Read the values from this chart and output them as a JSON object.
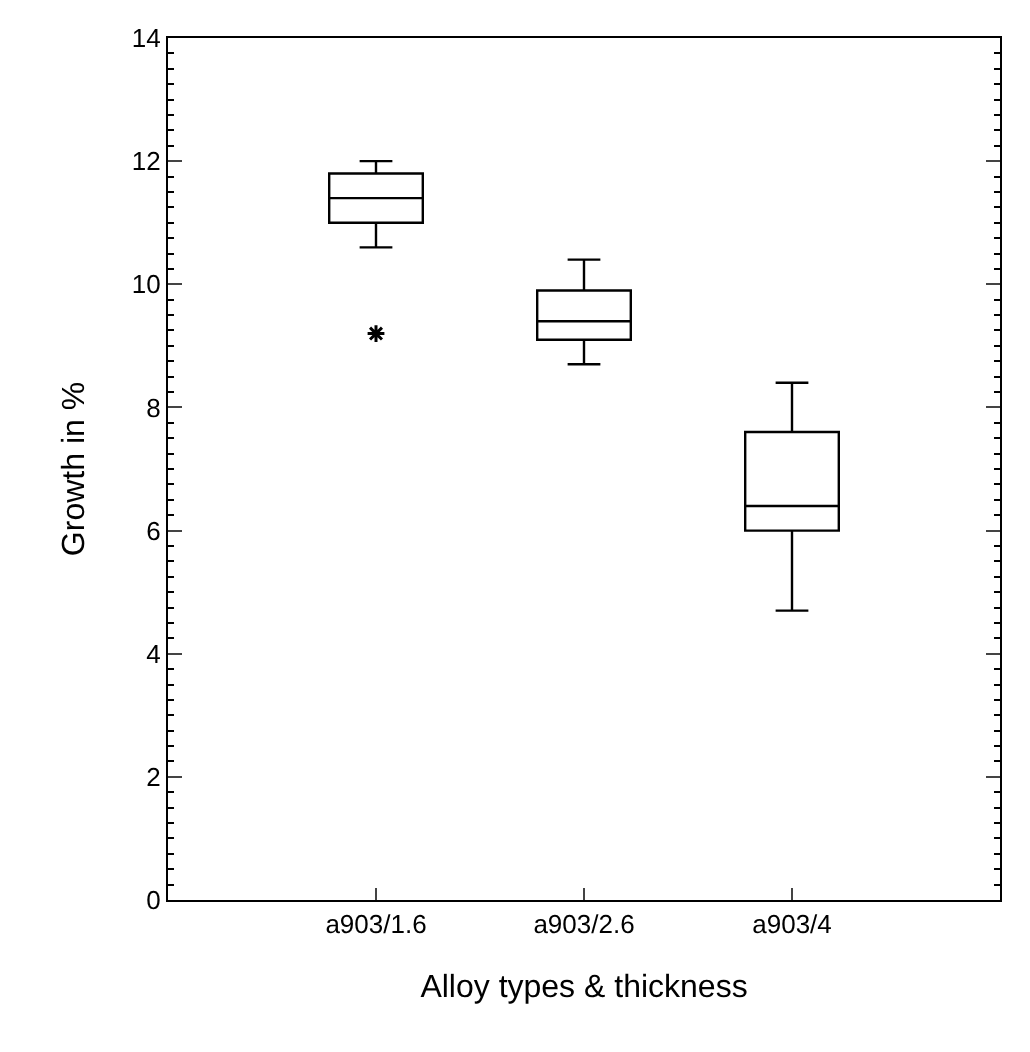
{
  "chart_data": {
    "type": "box",
    "xlabel": "Alloy types & thickness",
    "ylabel": "Growth in %",
    "categories": [
      "a903/1.6",
      "a903/2.6",
      "a903/4"
    ],
    "boxes": [
      {
        "low": 10.6,
        "q1": 11.0,
        "median": 11.4,
        "q3": 11.8,
        "high": 12.0,
        "outliers": [
          9.2
        ]
      },
      {
        "low": 8.7,
        "q1": 9.1,
        "median": 9.4,
        "q3": 9.9,
        "high": 10.4
      },
      {
        "low": 4.7,
        "q1": 6.0,
        "median": 6.4,
        "q3": 7.6,
        "high": 8.4
      }
    ],
    "color": "#000000",
    "ylim": [
      0,
      14
    ],
    "yticks": [
      0,
      2,
      4,
      6,
      8,
      10,
      12,
      14
    ],
    "grid": false,
    "marker": "star"
  }
}
